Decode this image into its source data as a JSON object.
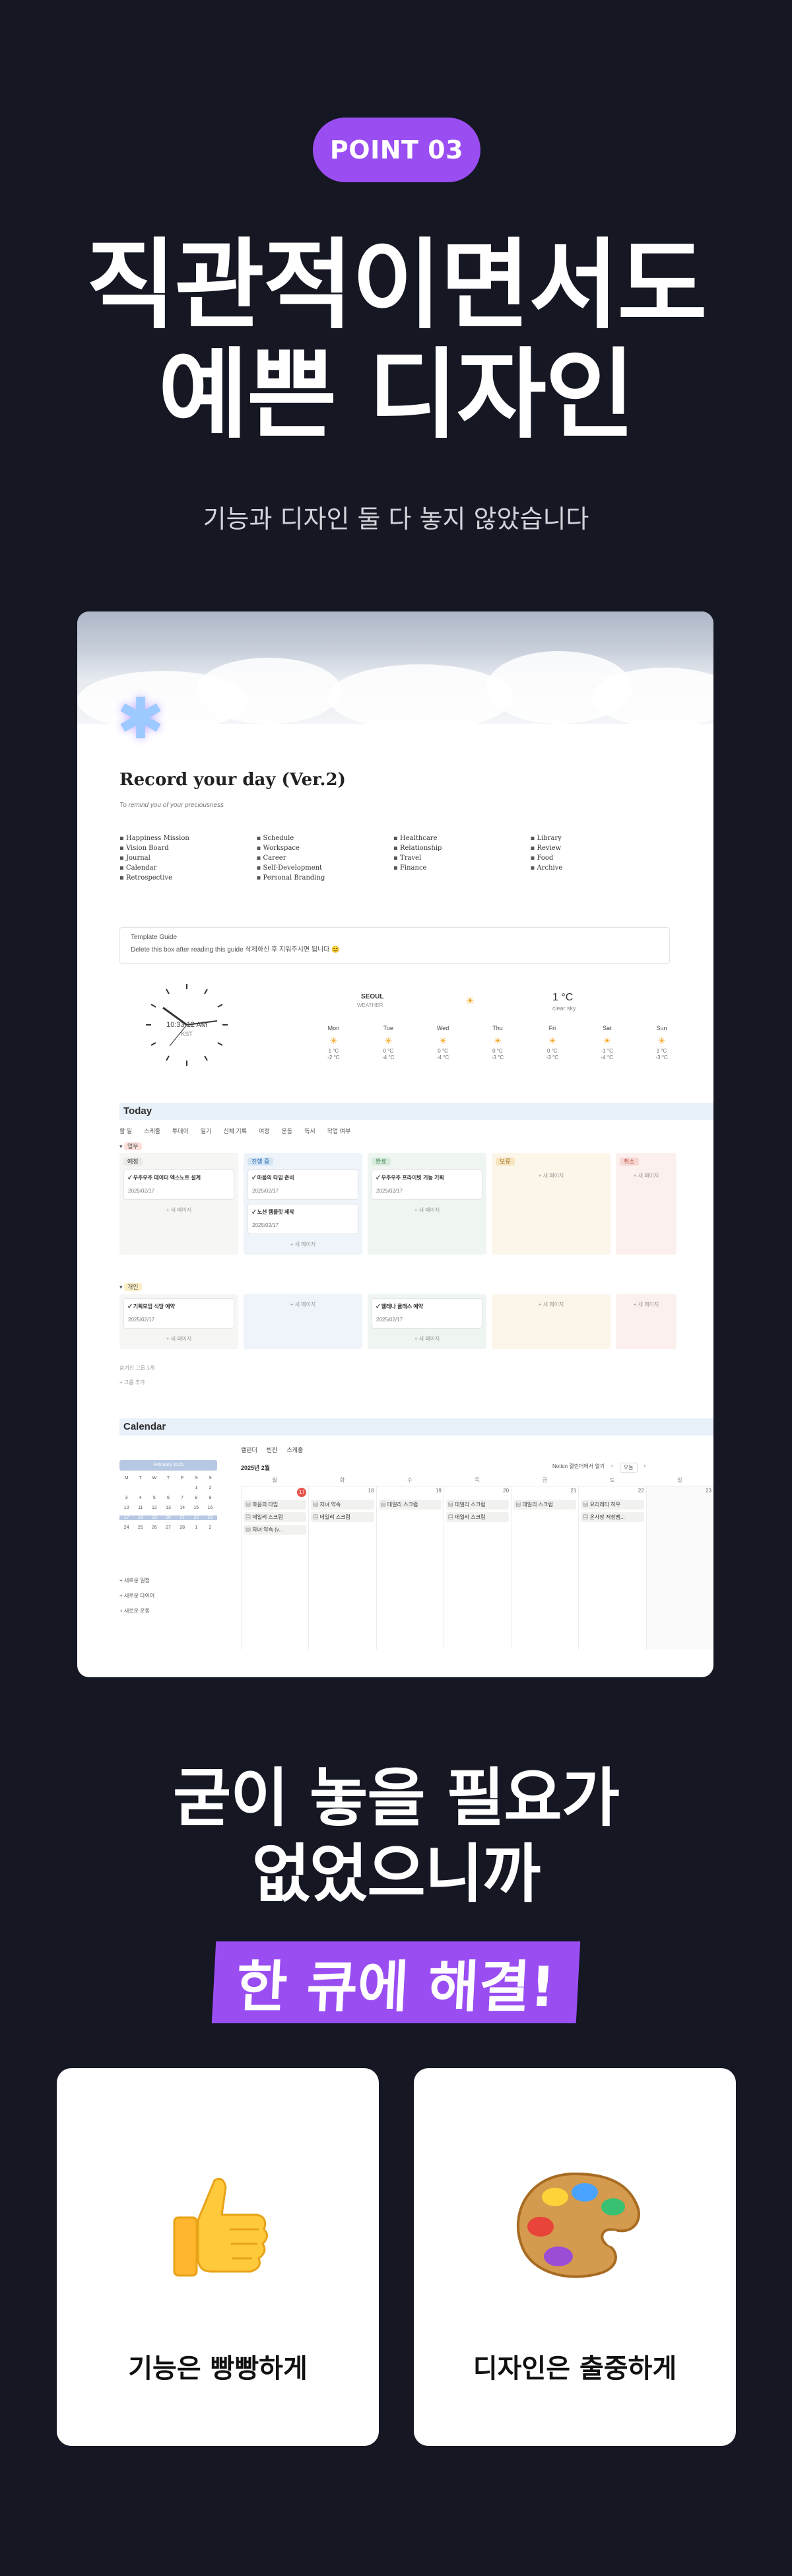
{
  "badge": "POINT 03",
  "hero": {
    "line1": "직관적이면서도",
    "line2": "예쁜 디자인",
    "subtitle": "기능과 디자인 둘 다 놓지 않았습니다"
  },
  "notion": {
    "page_title": "Record your day (Ver.2)",
    "page_desc": "To remind you of your preciousness",
    "links": [
      "Happiness Mission",
      "Schedule",
      "Healthcare",
      "Library",
      "Vision Board",
      "Workspace",
      "Relationship",
      "Review",
      "Journal",
      "Career",
      "Travel",
      "Food",
      "Calendar",
      "Self-Development",
      "Finance",
      "Archive",
      "Retrospective",
      "Personal Branding"
    ],
    "guide_title": "Template Guide",
    "guide_text": "Delete this box after reading this guide 삭제하신 후 지워주시면 됩니다 😊",
    "clock_time": "10:33:12 AM",
    "clock_tz": "KST",
    "weather": {
      "city": "SEOUL",
      "sub": "WEATHER",
      "temp": "1 °C",
      "desc": "clear sky",
      "days": [
        {
          "day": "Mon",
          "hi": "1 °C",
          "lo": "-2 °C"
        },
        {
          "day": "Tue",
          "hi": "0 °C",
          "lo": "-4 °C"
        },
        {
          "day": "Wed",
          "hi": "0 °C",
          "lo": "-4 °C"
        },
        {
          "day": "Thu",
          "hi": "0 °C",
          "lo": "-3 °C"
        },
        {
          "day": "Fri",
          "hi": "0 °C",
          "lo": "-3 °C"
        },
        {
          "day": "Sat",
          "hi": "-1 °C",
          "lo": "-4 °C"
        },
        {
          "day": "Sun",
          "hi": "1 °C",
          "lo": "-3 °C"
        }
      ]
    },
    "today": {
      "header": "Today",
      "tabs": [
        "할 일",
        "스케줄",
        "투데이",
        "일기",
        "신체 기록",
        "여정",
        "운동",
        "독서",
        "작업 여부"
      ],
      "group1_label": "업무",
      "group2_label": "개인",
      "col_heads": [
        "예정",
        "진행 중",
        "완료",
        "보류",
        "취소"
      ],
      "row1": [
        [
          {
            "title": "우주우주 데이터 엑스노트 설계",
            "date": "2025/02/17"
          }
        ],
        [
          {
            "title": "마음의 타임 준비",
            "date": "2025/02/17"
          },
          {
            "title": "노션 템플릿 제작",
            "date": "2025/02/17"
          }
        ],
        [
          {
            "title": "우주우주 프라이빗 기능 기획",
            "date": "2025/02/17"
          }
        ],
        [],
        []
      ],
      "row2": [
        [
          {
            "title": "기획모임 식당 예약",
            "date": "2025/02/17"
          }
        ],
        [],
        [
          {
            "title": "헬레나 클래스 예약",
            "date": "2025/02/17"
          }
        ],
        [],
        []
      ],
      "new_label": "+ 새 페이지",
      "hidden_label": "숨겨진 그룹 1개",
      "add_group": "+ 그룹 추가"
    },
    "calendar": {
      "header": "Calendar",
      "tabs": [
        "캘린더",
        "빈칸",
        "스케줄"
      ],
      "month": "2025년 2월",
      "notion_btn": "Notion 캘린더에서 열기",
      "today_btn": "오늘",
      "mini_title": "February 2025",
      "mini_days": [
        "M",
        "T",
        "W",
        "T",
        "F",
        "S",
        "S"
      ],
      "mini_weeks": [
        [
          "",
          "",
          "",
          "",
          "",
          "1",
          "2"
        ],
        [
          "3",
          "4",
          "5",
          "6",
          "7",
          "8",
          "9"
        ],
        [
          "10",
          "11",
          "12",
          "13",
          "14",
          "15",
          "16"
        ],
        [
          "17",
          "18",
          "19",
          "20",
          "21",
          "22",
          "23"
        ],
        [
          "24",
          "25",
          "26",
          "27",
          "28",
          "1",
          "2"
        ]
      ],
      "side_buttons": [
        "+ 새로운 일정",
        "+ 새로운 다이어",
        "+ 새로운 운동"
      ],
      "week_days": [
        "월",
        "화",
        "수",
        "목",
        "금",
        "토",
        "일"
      ],
      "week_dates": [
        "17",
        "18",
        "19",
        "20",
        "21",
        "22",
        "23"
      ],
      "events": [
        [
          "마음의 타임",
          "데일리 스크럼",
          "자녀 약속 (v..."
        ],
        [
          "자녀 약속",
          "데일리 스크럼"
        ],
        [
          "데일리 스크럼"
        ],
        [
          "데일리 스크럼",
          "데일리 스크럼"
        ],
        [
          "데일리 스크럼"
        ],
        [
          "요리레타 하우",
          "온사장 저장멤..."
        ],
        []
      ]
    }
  },
  "mid": {
    "line1": "굳이 놓을 필요가",
    "line2": "없었으니까",
    "highlight": "한 큐에 해결!"
  },
  "cards": [
    {
      "label": "기능은 빵빵하게",
      "icon": "thumbs-up-icon"
    },
    {
      "label": "디자인은 출중하게",
      "icon": "palette-icon"
    }
  ],
  "colors": {
    "accent": "#9a4ef2",
    "background": "#151723"
  }
}
